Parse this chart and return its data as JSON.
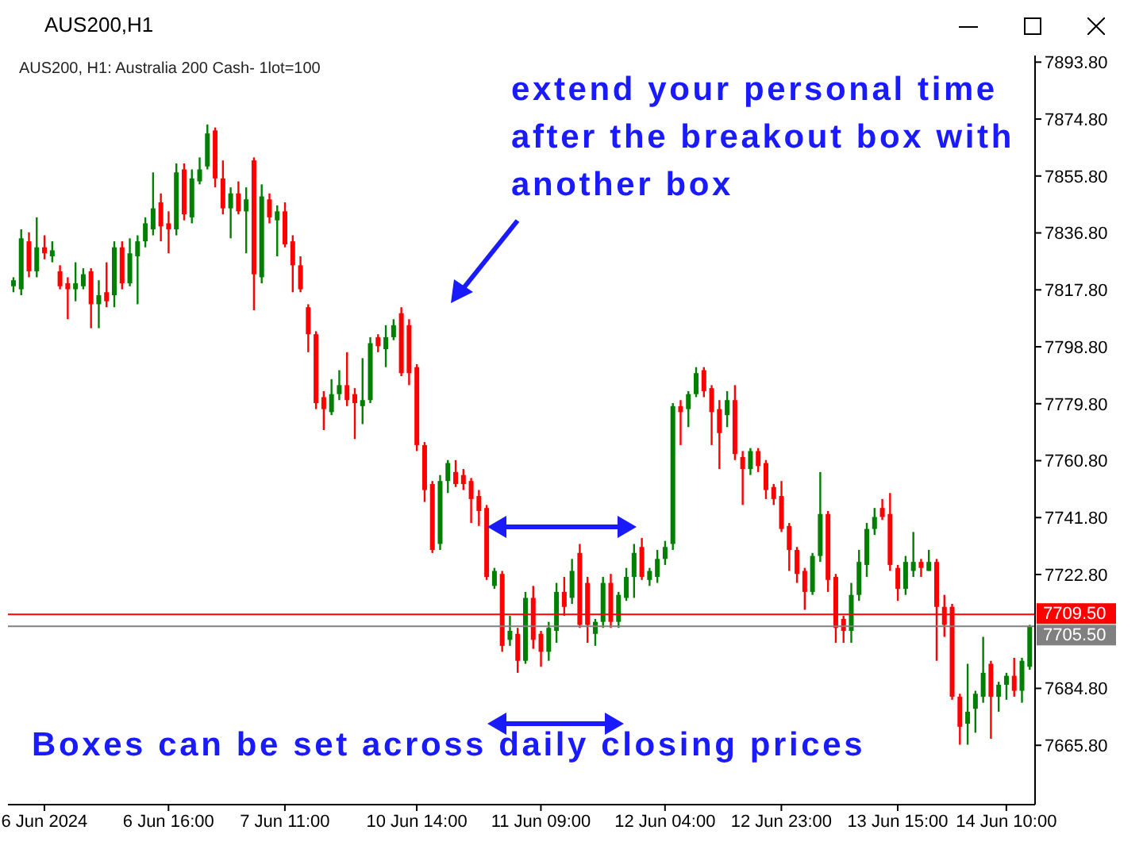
{
  "chart_data": {
    "type": "candlestick",
    "title": "AUS200,H1",
    "subtitle": "AUS200, H1:  Australia 200 Cash- 1lot=100",
    "annotations": [
      "extend your personal time after the breakout box with another box",
      "Boxes can be set across daily closing prices"
    ],
    "categories": [
      null,
      null,
      null,
      null,
      "6 Jun 2024",
      null,
      null,
      null,
      null,
      null,
      null,
      null,
      null,
      null,
      null,
      null,
      null,
      null,
      null,
      null,
      "6 Jun 16:00",
      null,
      null,
      null,
      null,
      null,
      null,
      null,
      null,
      null,
      null,
      null,
      null,
      null,
      null,
      "7 Jun 11:00",
      null,
      null,
      null,
      null,
      null,
      null,
      null,
      null,
      null,
      null,
      null,
      null,
      null,
      null,
      null,
      null,
      "10 Jun 14:00",
      null,
      null,
      null,
      null,
      null,
      null,
      null,
      null,
      null,
      null,
      null,
      null,
      null,
      null,
      null,
      "11 Jun 09:00",
      null,
      null,
      null,
      null,
      null,
      null,
      null,
      null,
      null,
      null,
      null,
      null,
      null,
      null,
      null,
      "12 Jun 04:00",
      null,
      null,
      null,
      null,
      null,
      null,
      null,
      null,
      null,
      null,
      null,
      null,
      null,
      null,
      "12 Jun 23:00",
      null,
      null,
      null,
      null,
      null,
      null,
      null,
      null,
      null,
      null,
      null,
      null,
      null,
      null,
      "13 Jun 15:00",
      null,
      null,
      null,
      null,
      null,
      null,
      null,
      null,
      null,
      null,
      null,
      null,
      null,
      "14 Jun 10:00",
      null,
      null,
      null
    ],
    "colors": [
      "#008000",
      "#008000",
      "#ff0000",
      "#008000",
      "#ff0000",
      "#008000",
      "#ff0000",
      "#ff0000",
      "#008000",
      "#008000",
      "#ff0000",
      "#008000",
      "#ff0000",
      "#008000",
      "#ff0000",
      "#008000",
      "#008000",
      "#008000",
      "#008000",
      "#ff0000",
      "#ff0000",
      "#008000",
      "#ff0000",
      "#008000",
      "#008000",
      "#008000",
      "#ff0000",
      "#ff0000",
      "#008000",
      "#ff0000",
      "#008000",
      "#ff0000",
      "#008000",
      "#ff0000",
      "#008000",
      "#ff0000",
      "#ff0000",
      "#ff0000",
      "#ff0000",
      "#ff0000",
      "#ff0000",
      "#008000",
      "#008000",
      "#ff0000",
      "#ff0000",
      "#008000",
      "#008000",
      "#ff0000",
      "#008000",
      "#008000",
      "#ff0000",
      "#ff0000",
      "#ff0000",
      "#ff0000",
      "#ff0000",
      "#008000",
      "#008000",
      "#ff0000",
      "#ff0000",
      "#ff0000",
      "#ff0000",
      "#ff0000",
      "#008000",
      "#ff0000",
      "#008000",
      "#ff0000",
      "#008000",
      "#ff0000",
      "#ff0000",
      "#008000",
      "#008000",
      "#ff0000",
      "#008000",
      "#ff0000",
      "#ff0000",
      "#008000",
      "#008000",
      "#ff0000",
      "#008000",
      "#008000",
      "#008000",
      "#ff0000",
      "#008000",
      "#008000",
      "#008000",
      "#008000",
      "#ff0000",
      "#008000",
      "#008000",
      "#ff0000",
      "#ff0000",
      "#ff0000",
      "#008000",
      "#ff0000",
      "#ff0000",
      "#008000",
      "#ff0000",
      "#ff0000",
      "#ff0000",
      "#ff0000",
      "#ff0000",
      "#ff0000",
      "#ff0000",
      "#008000",
      "#008000",
      "#ff0000",
      "#ff0000",
      "#ff0000",
      "#008000",
      "#008000",
      "#008000",
      "#008000",
      "#ff0000",
      "#ff0000",
      "#ff0000",
      "#008000",
      "#008000",
      "#ff0000",
      "#008000",
      "#ff0000",
      "#ff0000",
      "#ff0000",
      "#ff0000",
      "#008000",
      "#008000",
      "#008000",
      "#ff0000",
      "#008000",
      "#008000",
      "#ff0000",
      "#008000",
      "#008000"
    ],
    "ohlc": [
      [
        7819,
        7822,
        7817,
        7821
      ],
      [
        7818,
        7838,
        7816,
        7835
      ],
      [
        7834,
        7837,
        7822,
        7824
      ],
      [
        7824,
        7842,
        7822,
        7832
      ],
      [
        7832,
        7836,
        7828,
        7830
      ],
      [
        7829,
        7834,
        7827,
        7831
      ],
      [
        7824,
        7826,
        7818,
        7819
      ],
      [
        7820,
        7822,
        7808,
        7818
      ],
      [
        7818,
        7827,
        7814,
        7820
      ],
      [
        7819,
        7825,
        7818,
        7823
      ],
      [
        7824,
        7825,
        7805,
        7813
      ],
      [
        7813,
        7821,
        7805,
        7816
      ],
      [
        7817,
        7827,
        7812,
        7814
      ],
      [
        7816,
        7834,
        7812,
        7832
      ],
      [
        7832,
        7834,
        7818,
        7820
      ],
      [
        7820,
        7835,
        7819,
        7830
      ],
      [
        7829,
        7836,
        7813,
        7834
      ],
      [
        7834,
        7842,
        7832,
        7840
      ],
      [
        7838,
        7857,
        7836,
        7845
      ],
      [
        7847,
        7850,
        7834,
        7839
      ],
      [
        7840,
        7844,
        7830,
        7838
      ],
      [
        7838,
        7860,
        7836,
        7857
      ],
      [
        7858,
        7860,
        7841,
        7843
      ],
      [
        7842,
        7858,
        7840,
        7855
      ],
      [
        7854,
        7862,
        7853,
        7858
      ],
      [
        7859,
        7873,
        7858,
        7870
      ],
      [
        7871,
        7872,
        7852,
        7855
      ],
      [
        7855,
        7861,
        7843,
        7845
      ],
      [
        7845,
        7852,
        7835,
        7850
      ],
      [
        7850,
        7854,
        7843,
        7844
      ],
      [
        7844,
        7852,
        7830,
        7848
      ],
      [
        7861,
        7862,
        7811,
        7823
      ],
      [
        7822,
        7853,
        7820,
        7849
      ],
      [
        7848,
        7850,
        7840,
        7842
      ],
      [
        7841,
        7846,
        7829,
        7844
      ],
      [
        7844,
        7847,
        7832,
        7833
      ],
      [
        7834,
        7836,
        7817,
        7826
      ],
      [
        7826,
        7829,
        7817,
        7818
      ],
      [
        7812,
        7813,
        7797,
        7803
      ],
      [
        7803,
        7804,
        7778,
        7780
      ],
      [
        7782,
        7784,
        7771,
        7778
      ],
      [
        7777,
        7788,
        7776,
        7783
      ],
      [
        7783,
        7791,
        7781,
        7786
      ],
      [
        7786,
        7797,
        7779,
        7781
      ],
      [
        7783,
        7785,
        7768,
        7780
      ],
      [
        7779,
        7795,
        7773,
        7781
      ],
      [
        7781,
        7802,
        7780,
        7800
      ],
      [
        7802,
        7803,
        7797,
        7799
      ],
      [
        7798,
        7806,
        7792,
        7802
      ],
      [
        7802,
        7808,
        7801,
        7806
      ],
      [
        7810,
        7812,
        7789,
        7790
      ],
      [
        7806,
        7808,
        7786,
        7790
      ],
      [
        7792,
        7793,
        7764,
        7766
      ],
      [
        7766,
        7767,
        7747,
        7751
      ],
      [
        7753,
        7754,
        7730,
        7731
      ],
      [
        7733,
        7756,
        7731,
        7754
      ],
      [
        7754,
        7761,
        7750,
        7760
      ],
      [
        7757,
        7761,
        7752,
        7753
      ],
      [
        7756,
        7758,
        7751,
        7753
      ],
      [
        7754,
        7755,
        7740,
        7748
      ],
      [
        7749,
        7751,
        7739,
        7744
      ],
      [
        7745,
        7746,
        7721,
        7722
      ],
      [
        7719,
        7725,
        7718,
        7724
      ],
      [
        7723,
        7724,
        7697,
        7699
      ],
      [
        7701,
        7709,
        7699,
        7704
      ],
      [
        7703,
        7705,
        7690,
        7694
      ],
      [
        7694,
        7717,
        7693,
        7715
      ],
      [
        7715,
        7719,
        7698,
        7701
      ],
      [
        7703,
        7704,
        7692,
        7697
      ],
      [
        7697,
        7707,
        7694,
        7705
      ],
      [
        7704,
        7720,
        7700,
        7717
      ],
      [
        7717,
        7722,
        7709,
        7712
      ],
      [
        7715,
        7728,
        7713,
        7724
      ],
      [
        7730,
        7733,
        7705,
        7706
      ],
      [
        7720,
        7722,
        7700,
        7706
      ],
      [
        7703,
        7708,
        7699,
        7707
      ],
      [
        7707,
        7722,
        7705,
        7720
      ],
      [
        7720,
        7723,
        7705,
        7707
      ],
      [
        7707,
        7717,
        7705,
        7716
      ],
      [
        7715,
        7725,
        7714,
        7722
      ],
      [
        7722,
        7733,
        7715,
        7730
      ],
      [
        7732,
        7735,
        7721,
        7722
      ],
      [
        7721,
        7725,
        7719,
        7724
      ],
      [
        7722,
        7731,
        7720,
        7728
      ],
      [
        7728,
        7734,
        7726,
        7732
      ],
      [
        7733,
        7780,
        7731,
        7779
      ],
      [
        7779,
        7781,
        7766,
        7777
      ],
      [
        7778,
        7784,
        7772,
        7783
      ],
      [
        7783,
        7792,
        7782,
        7790
      ],
      [
        7791,
        7792,
        7782,
        7784
      ],
      [
        7785,
        7786,
        7766,
        7777
      ],
      [
        7778,
        7781,
        7758,
        7770
      ],
      [
        7776,
        7784,
        7772,
        7781
      ],
      [
        7781,
        7786,
        7761,
        7763
      ],
      [
        7762,
        7764,
        7746,
        7758
      ],
      [
        7758,
        7765,
        7756,
        7764
      ],
      [
        7764,
        7765,
        7757,
        7759
      ],
      [
        7760,
        7761,
        7748,
        7751
      ],
      [
        7752,
        7753,
        7746,
        7748
      ],
      [
        7749,
        7754,
        7737,
        7738
      ],
      [
        7739,
        7740,
        7724,
        7731
      ],
      [
        7731,
        7732,
        7720,
        7723
      ],
      [
        7724,
        7725,
        7711,
        7717
      ],
      [
        7717,
        7730,
        7716,
        7729
      ],
      [
        7729,
        7757,
        7727,
        7743
      ],
      [
        7743,
        7744,
        7717,
        7721
      ],
      [
        7722,
        7723,
        7700,
        7705
      ],
      [
        7708,
        7709,
        7700,
        7704
      ],
      [
        7704,
        7720,
        7700,
        7716
      ],
      [
        7716,
        7731,
        7714,
        7727
      ],
      [
        7726,
        7740,
        7722,
        7738
      ],
      [
        7738,
        7745,
        7736,
        7742
      ],
      [
        7745,
        7748,
        7741,
        7742
      ],
      [
        7743,
        7750,
        7724,
        7726
      ],
      [
        7725,
        7726,
        7714,
        7718
      ],
      [
        7718,
        7729,
        7716,
        7727
      ],
      [
        7724,
        7737,
        7722,
        7727
      ],
      [
        7727,
        7728,
        7722,
        7725
      ],
      [
        7724,
        7731,
        7724,
        7727
      ],
      [
        7727,
        7728,
        7694,
        7712
      ],
      [
        7712,
        7716,
        7702,
        7706
      ],
      [
        7712,
        7713,
        7681,
        7682
      ],
      [
        7682,
        7683,
        7666,
        7672
      ],
      [
        7673,
        7693,
        7666,
        7677
      ],
      [
        7678,
        7684,
        7670,
        7683
      ],
      [
        7682,
        7702,
        7680,
        7690
      ],
      [
        7693,
        7694,
        7668,
        7682
      ],
      [
        7682,
        7687,
        7677,
        7686
      ],
      [
        7686,
        7690,
        7681,
        7689
      ],
      [
        7689,
        7695,
        7682,
        7684
      ],
      [
        7684,
        7695,
        7680,
        7694
      ],
      [
        7692,
        7706,
        7691,
        7705.5
      ]
    ],
    "ylim": [
      7646,
      7896
    ],
    "yticks": [
      {
        "value": 7665.8,
        "label": "7665.80"
      },
      {
        "value": 7684.8,
        "label": "7684.80"
      },
      {
        "value": 7722.8,
        "label": "7722.80"
      },
      {
        "value": 7741.8,
        "label": "7741.80"
      },
      {
        "value": 7760.8,
        "label": "7760.80"
      },
      {
        "value": 7779.8,
        "label": "7779.80"
      },
      {
        "value": 7798.8,
        "label": "7798.80"
      },
      {
        "value": 7817.8,
        "label": "7817.80"
      },
      {
        "value": 7836.8,
        "label": "7836.80"
      },
      {
        "value": 7855.8,
        "label": "7855.80"
      },
      {
        "value": 7874.8,
        "label": "7874.80"
      },
      {
        "value": 7893.8,
        "label": "7893.80"
      }
    ],
    "ref_lines": [
      {
        "axis": "y",
        "value": 7709.5,
        "label": "7709.50",
        "color": "#ff0000"
      },
      {
        "axis": "y",
        "value": 7705.5,
        "label": "7705.50",
        "color": "#808080"
      }
    ]
  }
}
